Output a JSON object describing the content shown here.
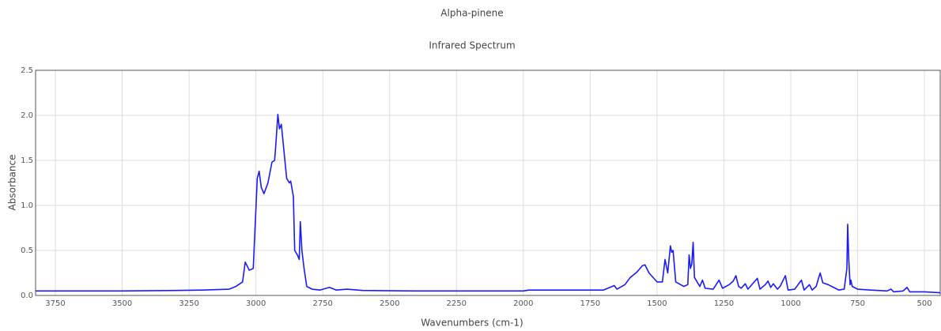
{
  "chart_data": {
    "type": "line",
    "title": "Alpha-pinene",
    "subtitle": "Infrared Spectrum",
    "x_label": "Wavenumbers (cm-1)",
    "y_label": "Absorbance",
    "xlim": [
      3824,
      441
    ],
    "ylim": [
      0,
      2.5
    ],
    "grid": true,
    "xticks": [
      3750,
      3500,
      3250,
      3000,
      2750,
      2500,
      2250,
      2000,
      1750,
      1500,
      1250,
      1000,
      750,
      500
    ],
    "yticks": [
      {
        "value": 0,
        "label": "0.0"
      },
      0.5,
      {
        "value": 1,
        "label": "1.0"
      },
      1.5,
      {
        "value": 2,
        "label": "2.0"
      },
      2.5
    ],
    "series": [
      {
        "color": "#1a1aff",
        "x": [
          3824,
          3700,
          3500,
          3300,
          3200,
          3100,
          3075,
          3050,
          3040,
          3025,
          3010,
          2995,
          2988,
          2980,
          2970,
          2955,
          2940,
          2930,
          2925,
          2918,
          2912,
          2905,
          2895,
          2885,
          2875,
          2870,
          2860,
          2855,
          2845,
          2838,
          2834,
          2828,
          2820,
          2810,
          2790,
          2760,
          2725,
          2700,
          2660,
          2600,
          2400,
          2200,
          2000,
          1980,
          1800,
          1700,
          1660,
          1650,
          1620,
          1600,
          1575,
          1555,
          1545,
          1530,
          1500,
          1480,
          1470,
          1460,
          1450,
          1445,
          1440,
          1430,
          1400,
          1385,
          1380,
          1375,
          1370,
          1365,
          1360,
          1340,
          1330,
          1320,
          1290,
          1268,
          1255,
          1230,
          1215,
          1205,
          1195,
          1185,
          1170,
          1160,
          1125,
          1115,
          1095,
          1085,
          1075,
          1065,
          1050,
          1040,
          1020,
          1010,
          985,
          960,
          950,
          930,
          920,
          905,
          890,
          880,
          860,
          840,
          820,
          800,
          790,
          787,
          783,
          778,
          775,
          770,
          750,
          700,
          640,
          625,
          615,
          580,
          565,
          555,
          500,
          441
        ],
        "values": [
          0.05,
          0.05,
          0.05,
          0.055,
          0.06,
          0.07,
          0.1,
          0.15,
          0.37,
          0.28,
          0.3,
          1.3,
          1.38,
          1.2,
          1.13,
          1.25,
          1.48,
          1.5,
          1.7,
          2.01,
          1.85,
          1.9,
          1.6,
          1.3,
          1.25,
          1.27,
          1.1,
          0.5,
          0.45,
          0.4,
          0.82,
          0.5,
          0.3,
          0.1,
          0.07,
          0.06,
          0.09,
          0.06,
          0.07,
          0.055,
          0.05,
          0.05,
          0.05,
          0.06,
          0.06,
          0.06,
          0.11,
          0.07,
          0.12,
          0.2,
          0.26,
          0.33,
          0.34,
          0.25,
          0.15,
          0.15,
          0.4,
          0.25,
          0.55,
          0.48,
          0.5,
          0.15,
          0.1,
          0.12,
          0.45,
          0.3,
          0.35,
          0.59,
          0.2,
          0.1,
          0.17,
          0.08,
          0.07,
          0.17,
          0.08,
          0.12,
          0.16,
          0.22,
          0.1,
          0.08,
          0.13,
          0.07,
          0.19,
          0.07,
          0.12,
          0.16,
          0.09,
          0.13,
          0.07,
          0.1,
          0.22,
          0.06,
          0.07,
          0.17,
          0.06,
          0.12,
          0.06,
          0.1,
          0.25,
          0.14,
          0.12,
          0.09,
          0.06,
          0.07,
          0.3,
          0.79,
          0.4,
          0.12,
          0.17,
          0.1,
          0.07,
          0.06,
          0.05,
          0.07,
          0.04,
          0.05,
          0.09,
          0.04,
          0.04,
          0.03
        ]
      }
    ]
  }
}
